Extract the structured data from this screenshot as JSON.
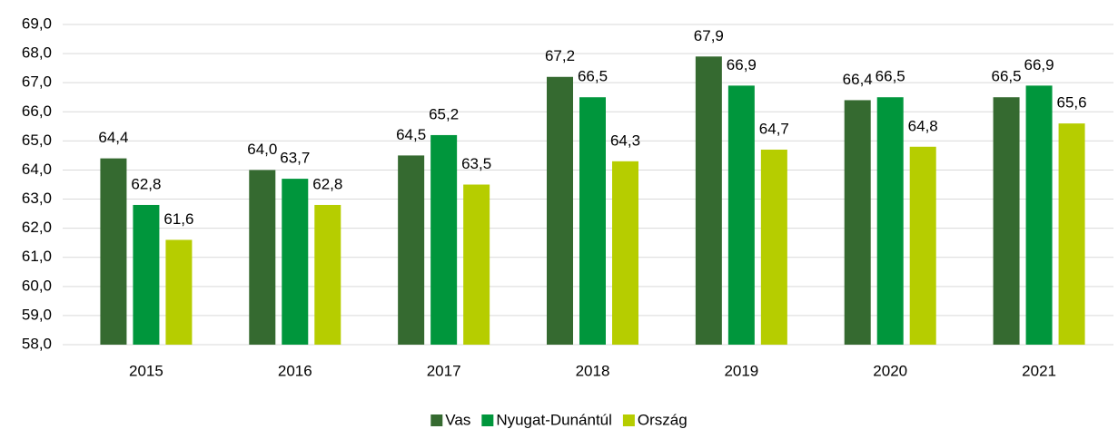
{
  "chart_data": {
    "type": "bar",
    "categories": [
      "2015",
      "2016",
      "2017",
      "2018",
      "2019",
      "2020",
      "2021"
    ],
    "series": [
      {
        "name": "Vas",
        "color": "#356a30",
        "values": [
          64.4,
          64.0,
          64.5,
          67.2,
          67.9,
          66.4,
          66.5
        ],
        "value_labels": [
          "64,4",
          "64,0",
          "64,5",
          "67,2",
          "67,9",
          "66,4",
          "66,5"
        ]
      },
      {
        "name": "Nyugat-Dunántúl",
        "color": "#00963c",
        "values": [
          62.8,
          63.7,
          65.2,
          66.5,
          66.9,
          66.5,
          66.9
        ],
        "value_labels": [
          "62,8",
          "63,7",
          "65,2",
          "66,5",
          "66,9",
          "66,5",
          "66,9"
        ]
      },
      {
        "name": "Ország",
        "color": "#b6cd00",
        "values": [
          61.6,
          62.8,
          63.5,
          64.3,
          64.7,
          64.8,
          65.6
        ],
        "value_labels": [
          "61,6",
          "62,8",
          "63,5",
          "64,3",
          "64,7",
          "64,8",
          "65,6"
        ]
      }
    ],
    "ylim": [
      58,
      69
    ],
    "yticks": [
      {
        "value": 58,
        "label": "58,0"
      },
      {
        "value": 59,
        "label": "59,0"
      },
      {
        "value": 60,
        "label": "60,0"
      },
      {
        "value": 61,
        "label": "61,0"
      },
      {
        "value": 62,
        "label": "62,0"
      },
      {
        "value": 63,
        "label": "63,0"
      },
      {
        "value": 64,
        "label": "64,0"
      },
      {
        "value": 65,
        "label": "65,0"
      },
      {
        "value": 66,
        "label": "66,0"
      },
      {
        "value": 67,
        "label": "67,0"
      },
      {
        "value": 68,
        "label": "68,0"
      },
      {
        "value": 69,
        "label": "69,0"
      }
    ],
    "grid": true,
    "legend": "bottom"
  }
}
